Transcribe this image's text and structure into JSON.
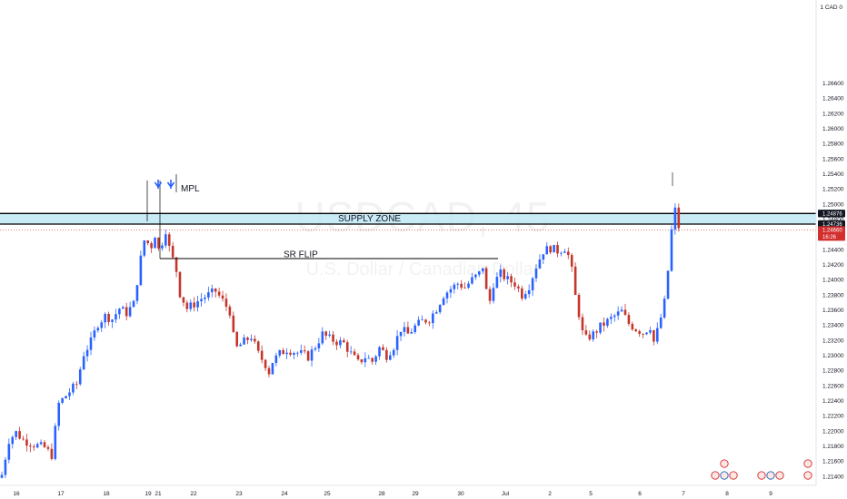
{
  "chart_data": {
    "type": "candlestick",
    "symbol": "USDCAD",
    "interval": "45",
    "description": "U.S. Dollar / Canadian Dollar",
    "currency_label": "1 CAD 0",
    "ylim": [
      1.2128,
      1.277
    ],
    "y_ticks": [
      "1.26600",
      "1.26400",
      "1.26200",
      "1.26000",
      "1.25800",
      "1.25600",
      "1.25400",
      "1.25200",
      "1.25000",
      "1.24800",
      "1.24600",
      "1.24400",
      "1.24200",
      "1.24000",
      "1.23800",
      "1.23600",
      "1.23400",
      "1.23200",
      "1.23000",
      "1.22800",
      "1.22600",
      "1.22400",
      "1.22200",
      "1.22000",
      "1.21800",
      "1.21600",
      "1.21400"
    ],
    "x_ticks": [
      "16",
      "17",
      "18",
      "19",
      "21",
      "22",
      "23",
      "24",
      "25",
      "28",
      "29",
      "30",
      "Jul",
      "2",
      "5",
      "6",
      "7",
      "8",
      "9"
    ],
    "price_path": [
      [
        0,
        1.2142
      ],
      [
        2,
        1.2188
      ],
      [
        4,
        1.2198
      ],
      [
        6,
        1.2188
      ],
      [
        9,
        1.2182
      ],
      [
        12,
        1.2178
      ],
      [
        14,
        1.2168
      ],
      [
        16,
        1.2236
      ],
      [
        19,
        1.2252
      ],
      [
        21,
        1.2262
      ],
      [
        23,
        1.2302
      ],
      [
        25,
        1.2318
      ],
      [
        27,
        1.2342
      ],
      [
        29,
        1.2352
      ],
      [
        31,
        1.2348
      ],
      [
        33,
        1.2362
      ],
      [
        35,
        1.2356
      ],
      [
        37,
        1.2368
      ],
      [
        39,
        1.2428
      ],
      [
        40,
        1.2452
      ],
      [
        42,
        1.2445
      ],
      [
        43,
        1.246
      ],
      [
        44,
        1.244
      ],
      [
        45,
        1.245
      ],
      [
        46,
        1.2466
      ],
      [
        47,
        1.2442
      ],
      [
        49,
        1.2412
      ],
      [
        50,
        1.2382
      ],
      [
        52,
        1.2362
      ],
      [
        54,
        1.2368
      ],
      [
        56,
        1.2375
      ],
      [
        58,
        1.238
      ],
      [
        60,
        1.2385
      ],
      [
        62,
        1.2372
      ],
      [
        64,
        1.2358
      ],
      [
        65,
        1.2325
      ],
      [
        66,
        1.231
      ],
      [
        68,
        1.2318
      ],
      [
        70,
        1.2325
      ],
      [
        72,
        1.2302
      ],
      [
        74,
        1.2288
      ],
      [
        75,
        1.2278
      ],
      [
        76,
        1.2292
      ],
      [
        78,
        1.2302
      ],
      [
        80,
        1.2308
      ],
      [
        82,
        1.2305
      ],
      [
        84,
        1.2302
      ],
      [
        86,
        1.2298
      ],
      [
        88,
        1.2312
      ],
      [
        90,
        1.2328
      ],
      [
        92,
        1.2322
      ],
      [
        94,
        1.2318
      ],
      [
        96,
        1.2316
      ],
      [
        98,
        1.2302
      ],
      [
        100,
        1.229
      ],
      [
        102,
        1.2298
      ],
      [
        104,
        1.2292
      ],
      [
        106,
        1.231
      ],
      [
        108,
        1.23
      ],
      [
        110,
        1.2312
      ],
      [
        112,
        1.2335
      ],
      [
        114,
        1.2328
      ],
      [
        116,
        1.2338
      ],
      [
        118,
        1.2345
      ],
      [
        120,
        1.2348
      ],
      [
        122,
        1.2362
      ],
      [
        124,
        1.238
      ],
      [
        126,
        1.2388
      ],
      [
        128,
        1.2395
      ],
      [
        130,
        1.239
      ],
      [
        132,
        1.24
      ],
      [
        134,
        1.2408
      ],
      [
        135,
        1.2418
      ],
      [
        136,
        1.2385
      ],
      [
        137,
        1.2372
      ],
      [
        138,
        1.2395
      ],
      [
        140,
        1.2408
      ],
      [
        142,
        1.24
      ],
      [
        144,
        1.2395
      ],
      [
        146,
        1.238
      ],
      [
        148,
        1.2392
      ],
      [
        150,
        1.2418
      ],
      [
        152,
        1.2438
      ],
      [
        154,
        1.2442
      ],
      [
        156,
        1.2438
      ],
      [
        158,
        1.2442
      ],
      [
        159,
        1.2432
      ],
      [
        160,
        1.2412
      ],
      [
        161,
        1.2378
      ],
      [
        162,
        1.2355
      ],
      [
        163,
        1.233
      ],
      [
        164,
        1.2322
      ],
      [
        166,
        1.2328
      ],
      [
        168,
        1.2338
      ],
      [
        170,
        1.2345
      ],
      [
        172,
        1.2352
      ],
      [
        174,
        1.2358
      ],
      [
        176,
        1.2342
      ],
      [
        178,
        1.2335
      ],
      [
        180,
        1.233
      ],
      [
        182,
        1.2338
      ],
      [
        183,
        1.2318
      ],
      [
        184,
        1.2332
      ],
      [
        185,
        1.235
      ],
      [
        186,
        1.237
      ],
      [
        187,
        1.2412
      ],
      [
        188,
        1.2465
      ],
      [
        189,
        1.2492
      ],
      [
        190,
        1.247
      ]
    ],
    "annotations": [
      {
        "label": "SUPPLY ZONE",
        "type": "zone",
        "price_top": 1.24876,
        "price_bottom": 1.24736
      },
      {
        "label": "SR FLIP",
        "type": "line",
        "price": 1.2428
      },
      {
        "label": "MPL",
        "type": "line",
        "price": 1.247
      }
    ],
    "price_labels": [
      {
        "price": 1.24876,
        "text": "1.24876",
        "style": "dark"
      },
      {
        "price": 1.24736,
        "text": "1.24736",
        "style": "dark"
      },
      {
        "price": 1.2466,
        "text": "1.24660",
        "sub": "16:26",
        "style": "red"
      }
    ],
    "colors": {
      "up": "#2962ff",
      "down": "#c4362b",
      "zone_fill": "#bfe7f5",
      "zone_edge": "#000000",
      "current": "#d32f2f"
    }
  }
}
